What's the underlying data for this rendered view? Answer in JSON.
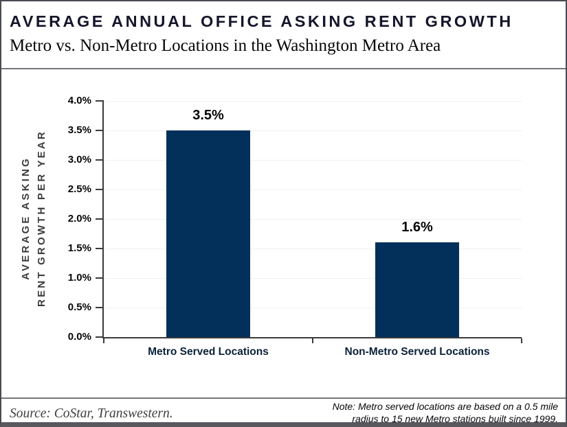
{
  "header": {
    "title": "AVERAGE ANNUAL OFFICE ASKING RENT GROWTH",
    "subtitle": "Metro vs. Non-Metro Locations in the Washington Metro Area"
  },
  "chart_data": {
    "type": "bar",
    "title": "Average Annual Office Asking Rent Growth",
    "subtitle": "Metro vs. Non-Metro Locations in the Washington Metro Area",
    "categories": [
      "Metro Served Locations",
      "Non-Metro Served Locations"
    ],
    "values": [
      3.5,
      1.6
    ],
    "value_labels": [
      "3.5%",
      "1.6%"
    ],
    "ylabel": "AVERAGE ASKING RENT GROWTH PER YEAR",
    "ylabel_lines": [
      "AVERAGE ASKING",
      "RENT GROWTH PER YEAR"
    ],
    "ylim": [
      0,
      4
    ],
    "ytick_step": 0.5,
    "ytick_labels": [
      "0.0%",
      "0.5%",
      "1.0%",
      "1.5%",
      "2.0%",
      "2.5%",
      "3.0%",
      "3.5%",
      "4.0%"
    ],
    "grid": true,
    "legend": "none",
    "bar_color": "#032f5b",
    "axis_color": "#3a3a3a",
    "gridline_color": "#f0f0f0"
  },
  "footer": {
    "source": "Source: CoStar, Transwestern.",
    "note_lines": [
      "Note: Metro served locations are based on a 0.5 mile",
      "radius to 15 new Metro stations built since 1999."
    ]
  }
}
